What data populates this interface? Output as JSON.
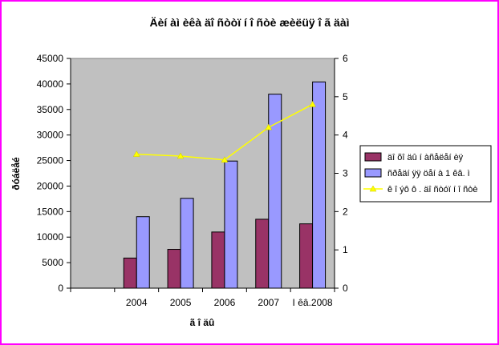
{
  "chart_data": {
    "type": "bar",
    "title": "Äèí àì èêà äî ñòòï í î ñòè æèëüÿ î ã äàì",
    "xlabel": "ã î äû",
    "ylabel": "ðóáëåé",
    "categories": [
      "2004",
      "2005",
      "2006",
      "2007",
      "I êâ.2008"
    ],
    "category_slots": 6,
    "ylim": [
      0,
      45000
    ],
    "yticks": [
      0,
      5000,
      10000,
      15000,
      20000,
      25000,
      30000,
      35000,
      40000,
      45000
    ],
    "y2lim": [
      0,
      6
    ],
    "y2ticks": [
      0,
      1,
      2,
      3,
      4,
      5,
      6
    ],
    "grid": false,
    "legend_position": "right",
    "series": [
      {
        "name": "äî õî äû í àñåëåí èÿ",
        "kind": "bar",
        "axis": "left",
        "color": "#993366",
        "values": [
          5900,
          7600,
          11000,
          13500,
          12600
        ]
      },
      {
        "name": "ñðåäí ÿÿ öåí à 1 êâ. ì",
        "kind": "bar",
        "axis": "left",
        "color": "#9999ff",
        "values": [
          14000,
          17600,
          24900,
          38000,
          40400
        ]
      },
      {
        "name": "ê î ýô ô . äî ñòóï í î ñòè",
        "kind": "line",
        "axis": "right",
        "color": "#ffff00",
        "values": [
          3.5,
          3.45,
          3.35,
          4.2,
          4.8
        ]
      }
    ]
  }
}
